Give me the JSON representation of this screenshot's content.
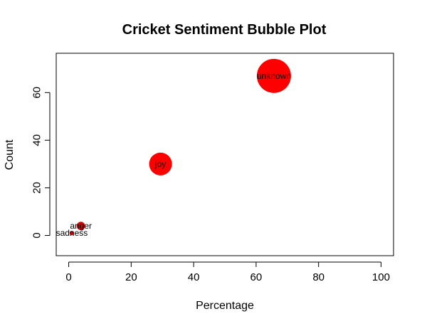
{
  "chart_data": {
    "type": "scatter",
    "title": "Cricket Sentiment Bubble Plot",
    "xlabel": "Percentage",
    "ylabel": "Count",
    "xlim": [
      -4,
      104
    ],
    "ylim": [
      -8.5,
      76.5
    ],
    "xticks": [
      0,
      20,
      40,
      60,
      80,
      100
    ],
    "yticks": [
      0,
      20,
      40,
      60
    ],
    "grid": false,
    "points": [
      {
        "label": "unknown",
        "x": 65.7,
        "y": 67,
        "size": 67,
        "color": "#ff0000"
      },
      {
        "label": "joy",
        "x": 29.4,
        "y": 30,
        "size": 30,
        "color": "#ff0000"
      },
      {
        "label": "anger",
        "x": 3.9,
        "y": 4,
        "size": 4,
        "color": "#d90000"
      },
      {
        "label": "sadness",
        "x": 1.0,
        "y": 1,
        "size": 1,
        "color": "#d90000"
      }
    ]
  }
}
